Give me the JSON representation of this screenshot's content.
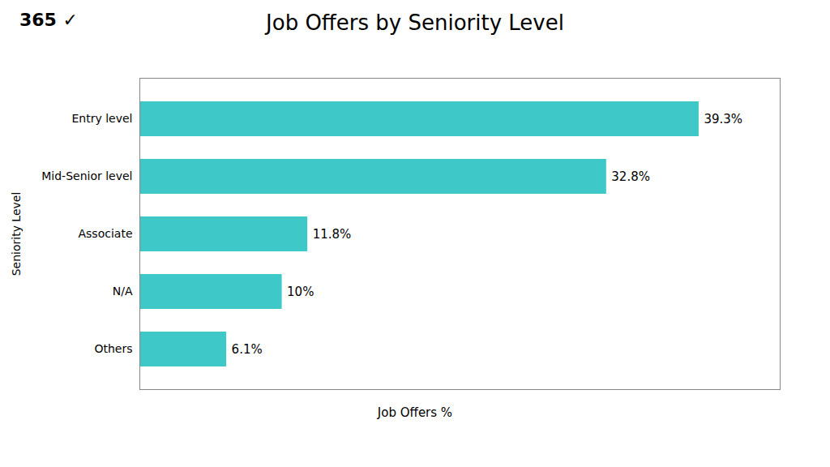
{
  "chart_data": {
    "type": "bar",
    "orientation": "horizontal",
    "title": "Job Offers by Seniority Level",
    "annotations": [
      "365",
      "✓"
    ],
    "xlabel": "Job Offers %",
    "ylabel": "Seniority Level",
    "categories": [
      "Entry level",
      "Mid-Senior level",
      "Associate",
      "N/A",
      "Others"
    ],
    "values": [
      39.3,
      32.8,
      11.8,
      10.0,
      6.1
    ],
    "value_labels": [
      "39.3%",
      "32.8%",
      "11.8%",
      "10%",
      "6.1%"
    ],
    "data_labels": true,
    "color": "#3EC8C8",
    "xlim": [
      0,
      45
    ],
    "tick_labels": "y"
  }
}
